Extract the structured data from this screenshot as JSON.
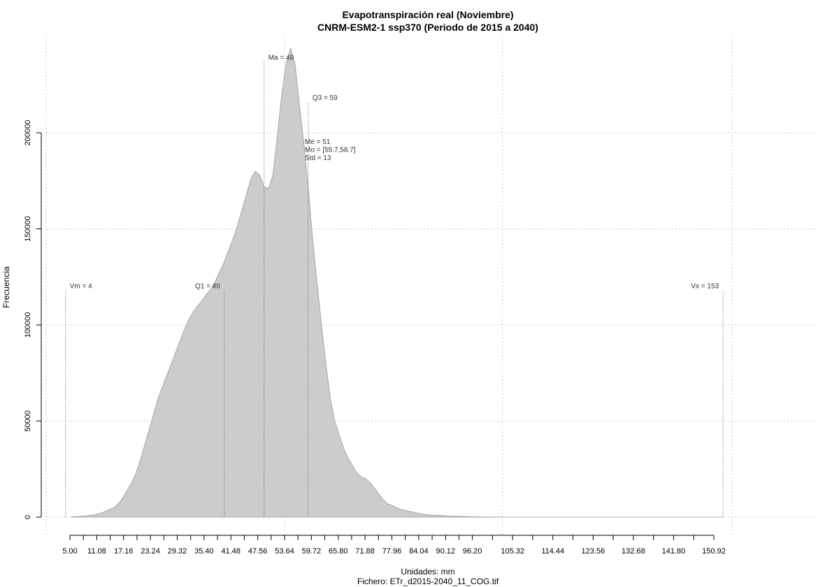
{
  "chart_data": {
    "type": "area",
    "title": "Evapotranspiración real (Noviembre)",
    "subtitle": "CNRM-ESM2-1 ssp370 (Periodo de 2015 a 2040)",
    "xlabel": "Unidades: mm",
    "ylabel": "Frecuencia",
    "caption": "Fichero: ETr_d2015-2040_11_COG.tif",
    "xlim": [
      3,
      155
    ],
    "ylim": [
      0,
      245000
    ],
    "x_ticks": [
      5.0,
      11.08,
      17.16,
      23.24,
      29.32,
      35.4,
      41.48,
      47.56,
      53.64,
      59.72,
      65.8,
      71.88,
      77.96,
      84.04,
      90.12,
      96.2,
      105.32,
      114.44,
      123.56,
      132.68,
      141.8,
      150.92
    ],
    "x_tick_labels": [
      "5.00",
      "11.08",
      "17.16",
      "23.24",
      "29.32",
      "35.40",
      "41.48",
      "47.56",
      "53.64",
      "59.72",
      "65.80",
      "71.88",
      "77.96",
      "84.04",
      "90.12",
      "96.20",
      "105.32",
      "114.44",
      "123.56",
      "132.68",
      "141.80",
      "150.92"
    ],
    "minor_ticks": [
      8.04,
      14.12,
      20.2,
      26.28,
      32.36,
      38.44,
      44.52,
      50.6,
      56.68,
      62.76,
      68.84,
      74.92,
      81.0,
      87.08,
      93.16,
      100.76,
      109.88,
      119.0,
      128.12,
      137.24,
      146.36
    ],
    "y_ticks": [
      0,
      50000,
      100000,
      150000,
      200000
    ],
    "y_tick_labels": [
      "0",
      "50000",
      "100000",
      "150000",
      "200000"
    ],
    "grid": true,
    "grid_x": [
      53.64,
      103,
      155
    ],
    "grid_y": [
      0,
      50000,
      100000,
      150000,
      200000
    ],
    "fill_color": "#cccccc",
    "line_color": "#999999",
    "x": [
      5,
      8,
      10,
      12,
      13,
      14,
      15,
      16,
      17,
      18,
      19,
      20,
      21,
      22,
      23,
      24,
      25,
      26,
      27,
      28,
      29,
      30,
      31,
      32,
      33,
      34,
      35,
      36,
      37,
      38,
      39,
      40,
      41,
      42,
      43,
      44,
      45,
      46,
      47,
      48,
      49,
      50,
      51,
      52,
      53,
      54,
      55,
      56,
      57,
      58,
      59,
      60,
      61,
      62,
      63,
      64,
      65,
      66,
      67,
      68,
      69,
      70,
      71,
      72,
      73,
      74,
      75,
      76,
      77,
      78,
      79,
      80,
      81,
      82,
      83,
      84,
      85,
      86,
      88,
      90,
      92,
      94,
      96,
      98,
      100,
      102,
      105,
      110,
      120,
      130,
      140,
      150,
      153
    ],
    "y": [
      0,
      500,
      1000,
      2000,
      3000,
      4000,
      5000,
      7000,
      10000,
      14000,
      18000,
      23000,
      30000,
      38000,
      46000,
      54000,
      62000,
      68000,
      74000,
      80000,
      86000,
      92000,
      98000,
      103000,
      107000,
      110000,
      113000,
      116000,
      119000,
      123000,
      128000,
      133000,
      139000,
      145000,
      152000,
      160000,
      168000,
      176000,
      180000,
      178000,
      172000,
      171000,
      178000,
      198000,
      220000,
      236000,
      244000,
      236000,
      215000,
      195000,
      172000,
      145000,
      122000,
      100000,
      80000,
      62000,
      50000,
      43000,
      36000,
      31000,
      27000,
      23000,
      21000,
      20000,
      18000,
      15000,
      12000,
      9000,
      7000,
      6000,
      5000,
      4000,
      3500,
      3000,
      2500,
      2000,
      1500,
      1200,
      900,
      700,
      500,
      300,
      200,
      100,
      50,
      20,
      0,
      0,
      0,
      0,
      0,
      0,
      0
    ],
    "annotations": [
      {
        "label": "Vm = 4",
        "x": 4,
        "y_top": 118000,
        "text_side": "right"
      },
      {
        "label": "Q1 = 40",
        "x": 40,
        "y_top": 118000,
        "text_side": "left"
      },
      {
        "label": "Ma = 49",
        "x": 49,
        "y_top": 237000,
        "text_side": "right"
      },
      {
        "label": "Q3 = 59",
        "x": 59,
        "y_top": 216000,
        "text_side": "right"
      },
      {
        "label": "Vx = 153",
        "x": 153,
        "y_top": 118000,
        "text_side": "left"
      }
    ],
    "stats_lines": [
      "Me = 51",
      "Mo = [55.7,58.7]",
      "Std = 13"
    ]
  }
}
